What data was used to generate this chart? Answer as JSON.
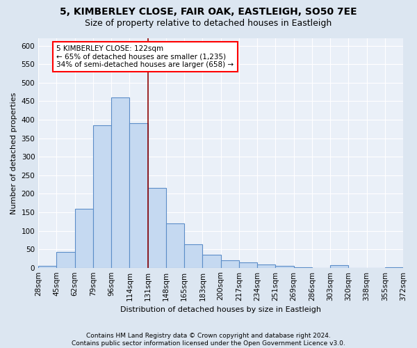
{
  "title1": "5, KIMBERLEY CLOSE, FAIR OAK, EASTLEIGH, SO50 7EE",
  "title2": "Size of property relative to detached houses in Eastleigh",
  "xlabel": "Distribution of detached houses by size in Eastleigh",
  "ylabel": "Number of detached properties",
  "bar_values": [
    5,
    42,
    160,
    385,
    460,
    390,
    215,
    120,
    63,
    35,
    20,
    15,
    8,
    5,
    2,
    0,
    7,
    0,
    0,
    2
  ],
  "categories": [
    "28sqm",
    "45sqm",
    "62sqm",
    "79sqm",
    "96sqm",
    "114sqm",
    "131sqm",
    "148sqm",
    "165sqm",
    "183sqm",
    "200sqm",
    "217sqm",
    "234sqm",
    "251sqm",
    "269sqm",
    "286sqm",
    "303sqm",
    "320sqm",
    "338sqm",
    "355sqm",
    "372sqm"
  ],
  "bar_color": "#c5d9f1",
  "bar_edge_color": "#5b8dc8",
  "vline_color": "#8b0000",
  "vline_x_idx": 5,
  "annotation_line1": "5 KIMBERLEY CLOSE: 122sqm",
  "annotation_line2": "← 65% of detached houses are smaller (1,235)",
  "annotation_line3": "34% of semi-detached houses are larger (658) →",
  "ylim": [
    0,
    620
  ],
  "yticks": [
    0,
    50,
    100,
    150,
    200,
    250,
    300,
    350,
    400,
    450,
    500,
    550,
    600
  ],
  "footnote": "Contains HM Land Registry data © Crown copyright and database right 2024.\nContains public sector information licensed under the Open Government Licence v3.0.",
  "bg_color": "#dce6f1",
  "plot_bg_color": "#eaf0f8",
  "grid_color": "#ffffff",
  "title1_fontsize": 10,
  "title2_fontsize": 9,
  "axis_label_fontsize": 8,
  "tick_fontsize": 7.5,
  "annotation_fontsize": 7.5,
  "footnote_fontsize": 6.5
}
